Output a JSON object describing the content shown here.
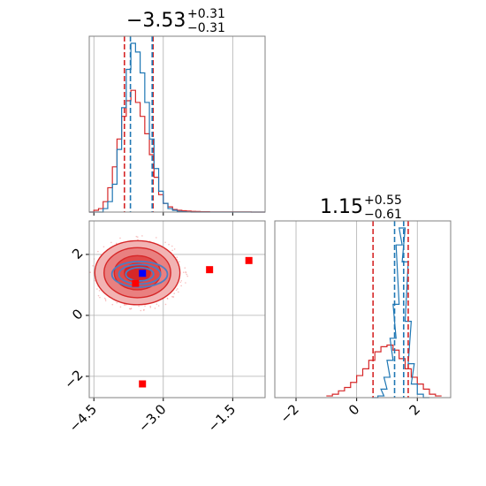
{
  "colors": {
    "red": "#d62728",
    "blue": "#1f77b4",
    "marker_blue": "#0000ff",
    "marker_red": "#ff0000",
    "grid": "#b0b0b0",
    "axis": "#808080"
  },
  "titles": {
    "top_left": {
      "value": "−3.53",
      "sup": "+0.31",
      "sub": "−0.31"
    },
    "bottom_right": {
      "value": "1.15",
      "sup": "+0.55",
      "sub": "−0.61"
    }
  },
  "chart_data": [
    {
      "type": "histogram",
      "panel": "top-left",
      "xlim": [
        -4.6,
        -0.8
      ],
      "grid": true,
      "series": [
        {
          "color": "red",
          "x": [
            -4.6,
            -4.5,
            -4.4,
            -4.3,
            -4.2,
            -4.1,
            -4.0,
            -3.9,
            -3.8,
            -3.7,
            -3.6,
            -3.5,
            -3.4,
            -3.3,
            -3.2,
            -3.1,
            -3.0,
            -2.9,
            -2.8,
            -2.7,
            -2.6,
            -2.5,
            -2.4,
            -2.3,
            -2.2,
            -2.1,
            -2.0,
            -1.9,
            -1.8,
            -1.7,
            -1.6,
            -1.5,
            -1.4,
            -1.3,
            -1.2,
            -1.1,
            -1.0,
            -0.9
          ],
          "values": [
            0.0,
            0.01,
            0.02,
            0.06,
            0.14,
            0.26,
            0.42,
            0.55,
            0.64,
            0.7,
            0.63,
            0.55,
            0.45,
            0.33,
            0.2,
            0.1,
            0.05,
            0.03,
            0.015,
            0.01,
            0.008,
            0.006,
            0.004,
            0.003,
            0.002,
            0.002,
            0.001,
            0.001,
            0.001,
            0.001,
            0.001,
            0.001,
            0.001,
            0.001,
            0.001,
            0.0,
            0.0,
            0.0
          ]
        },
        {
          "color": "blue",
          "x": [
            -4.6,
            -4.5,
            -4.4,
            -4.3,
            -4.2,
            -4.1,
            -4.0,
            -3.9,
            -3.8,
            -3.7,
            -3.6,
            -3.5,
            -3.4,
            -3.3,
            -3.2,
            -3.1,
            -3.0,
            -2.9,
            -2.8,
            -2.7,
            -2.6,
            -2.5,
            -2.4,
            -2.3,
            -2.2,
            -2.1,
            -2.0,
            -1.9,
            -1.8,
            -1.7,
            -1.6,
            -1.5,
            -1.4,
            -1.3,
            -1.2,
            -1.1,
            -1.0,
            -0.9
          ],
          "values": [
            0.0,
            0.0,
            0.0,
            0.02,
            0.06,
            0.16,
            0.36,
            0.6,
            0.82,
            0.97,
            0.92,
            0.8,
            0.63,
            0.42,
            0.25,
            0.12,
            0.05,
            0.02,
            0.01,
            0.004,
            0.002,
            0.001,
            0.0,
            0.0,
            0.0,
            0.0,
            0.0,
            0.0,
            0.0,
            0.0,
            0.0,
            0.0,
            0.0,
            0.0,
            0.0,
            0.0,
            0.0,
            0.0
          ]
        }
      ],
      "vlines": [
        {
          "x": -3.84,
          "color": "red"
        },
        {
          "x": -3.22,
          "color": "red"
        },
        {
          "x": -3.71,
          "color": "blue"
        },
        {
          "x": -3.24,
          "color": "blue"
        }
      ]
    },
    {
      "type": "scatter",
      "panel": "bottom-left",
      "xlim": [
        -4.6,
        -0.8
      ],
      "ylim": [
        -2.7,
        3.1
      ],
      "grid": true,
      "xticks": [
        -4.5,
        -3.0,
        -1.5
      ],
      "xtick_labels": [
        "−4.5",
        "−3.0",
        "−1.5"
      ],
      "yticks": [
        -2,
        0,
        2
      ],
      "ytick_labels": [
        "−2",
        "0",
        "2"
      ],
      "contours": {
        "center": [
          -3.56,
          1.4
        ],
        "red_levels": [
          {
            "rx": 0.92,
            "ry": 1.05
          },
          {
            "rx": 0.72,
            "ry": 0.82
          },
          {
            "rx": 0.5,
            "ry": 0.56
          },
          {
            "rx": 0.28,
            "ry": 0.3
          }
        ],
        "blue_levels": [
          {
            "rx": 0.6,
            "ry": 0.42
          },
          {
            "rx": 0.45,
            "ry": 0.32
          },
          {
            "rx": 0.3,
            "ry": 0.22
          }
        ]
      },
      "markers": [
        {
          "x": -3.45,
          "y": 1.38,
          "color": "marker_blue"
        },
        {
          "x": -3.6,
          "y": 1.05,
          "color": "marker_red"
        },
        {
          "x": -2.0,
          "y": 1.5,
          "color": "marker_red"
        },
        {
          "x": -1.15,
          "y": 1.8,
          "color": "marker_red"
        },
        {
          "x": -3.45,
          "y": -2.25,
          "color": "marker_red"
        }
      ]
    },
    {
      "type": "histogram",
      "panel": "bottom-right",
      "xlim": [
        -2.7,
        3.1
      ],
      "grid": true,
      "xticks": [
        -2,
        0,
        2
      ],
      "xtick_labels": [
        "−2",
        "0",
        "2"
      ],
      "series": [
        {
          "color": "red",
          "x": [
            -1.0,
            -0.8,
            -0.6,
            -0.4,
            -0.2,
            0.0,
            0.2,
            0.4,
            0.6,
            0.8,
            1.0,
            1.2,
            1.4,
            1.6,
            1.8,
            2.0,
            2.2,
            2.4,
            2.6
          ],
          "values": [
            0.01,
            0.02,
            0.04,
            0.06,
            0.09,
            0.13,
            0.17,
            0.22,
            0.27,
            0.3,
            0.31,
            0.28,
            0.23,
            0.17,
            0.12,
            0.08,
            0.05,
            0.02,
            0.01
          ]
        },
        {
          "color": "blue",
          "x": [
            0.5,
            0.7,
            0.8,
            0.9,
            1.0,
            1.1,
            1.2,
            1.3,
            1.4,
            1.5,
            1.6,
            1.7,
            1.8,
            2.0,
            2.2
          ],
          "values": [
            0.0,
            0.01,
            0.05,
            0.12,
            0.22,
            0.35,
            0.55,
            0.9,
            1.0,
            0.8,
            0.45,
            0.2,
            0.08,
            0.02,
            0.0
          ]
        }
      ],
      "vlines": [
        {
          "x": 0.54,
          "color": "red"
        },
        {
          "x": 1.7,
          "color": "red"
        },
        {
          "x": 1.25,
          "color": "blue"
        },
        {
          "x": 1.55,
          "color": "blue"
        }
      ]
    }
  ]
}
